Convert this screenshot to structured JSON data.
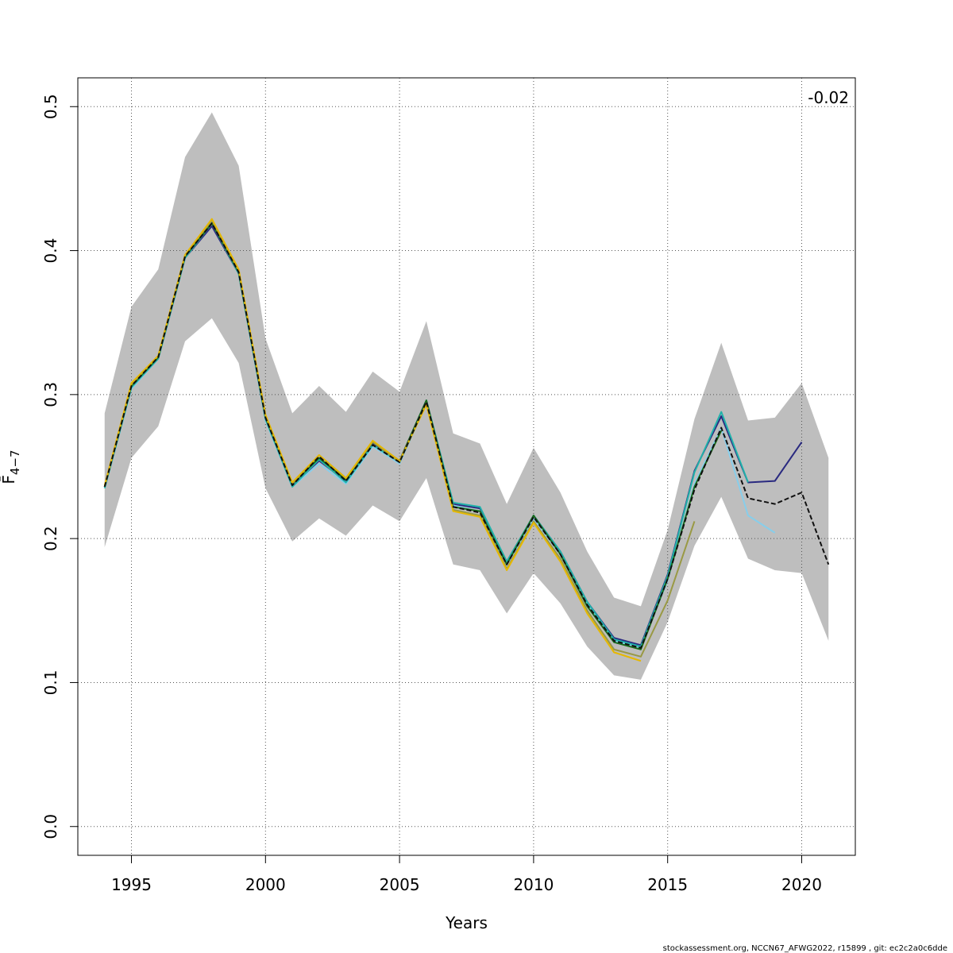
{
  "chart_data": {
    "type": "line",
    "title": "",
    "xlabel": "Years",
    "ylabel": "F̄",
    "ylabel_subscript": "4−7",
    "xlim": [
      1993,
      2022
    ],
    "ylim": [
      -0.02,
      0.52
    ],
    "x_ticks": [
      1995,
      2000,
      2005,
      2010,
      2015,
      2020
    ],
    "y_ticks": [
      0.0,
      0.1,
      0.2,
      0.3,
      0.4,
      0.5
    ],
    "grid": true,
    "annotation": "-0.02",
    "footer": "stockassessment.org, NCCN67_AFWG2022, r15899 , git: ec2c2a0c6dde",
    "confidence_band": {
      "color": "#bebebe",
      "x": [
        1994,
        1995,
        1996,
        1997,
        1998,
        1999,
        2000,
        2001,
        2002,
        2003,
        2004,
        2005,
        2006,
        2007,
        2008,
        2009,
        2010,
        2011,
        2012,
        2013,
        2014,
        2015,
        2016,
        2017,
        2018,
        2019,
        2020,
        2021
      ],
      "upper": [
        0.287,
        0.361,
        0.387,
        0.465,
        0.496,
        0.459,
        0.339,
        0.287,
        0.306,
        0.288,
        0.316,
        0.302,
        0.351,
        0.273,
        0.266,
        0.224,
        0.263,
        0.232,
        0.191,
        0.159,
        0.153,
        0.206,
        0.283,
        0.336,
        0.282,
        0.284,
        0.308,
        0.256
      ],
      "lower": [
        0.194,
        0.256,
        0.278,
        0.337,
        0.353,
        0.322,
        0.235,
        0.198,
        0.214,
        0.202,
        0.223,
        0.212,
        0.242,
        0.182,
        0.178,
        0.148,
        0.176,
        0.155,
        0.125,
        0.105,
        0.102,
        0.142,
        0.195,
        0.229,
        0.186,
        0.178,
        0.176,
        0.129
      ]
    },
    "series": [
      {
        "color": "#2a2a80",
        "dashed": false,
        "x": [
          1994,
          1995,
          1996,
          1997,
          1998,
          1999,
          2000,
          2001,
          2002,
          2003,
          2004,
          2005,
          2006,
          2007,
          2008,
          2009,
          2010,
          2011,
          2012,
          2013,
          2014,
          2015,
          2016,
          2017,
          2018,
          2019,
          2020
        ],
        "values": [
          0.236,
          0.305,
          0.325,
          0.395,
          0.417,
          0.384,
          0.283,
          0.237,
          0.254,
          0.24,
          0.266,
          0.254,
          0.296,
          0.224,
          0.221,
          0.184,
          0.216,
          0.191,
          0.156,
          0.131,
          0.126,
          0.175,
          0.247,
          0.285,
          0.239,
          0.24,
          0.267
        ]
      },
      {
        "color": "#87ceeb",
        "dashed": false,
        "x": [
          1994,
          1995,
          1996,
          1997,
          1998,
          1999,
          2000,
          2001,
          2002,
          2003,
          2004,
          2005,
          2006,
          2007,
          2008,
          2009,
          2010,
          2011,
          2012,
          2013,
          2014,
          2015,
          2016,
          2017,
          2018,
          2019
        ],
        "values": [
          0.235,
          0.304,
          0.325,
          0.395,
          0.419,
          0.384,
          0.282,
          0.236,
          0.252,
          0.238,
          0.264,
          0.252,
          0.294,
          0.223,
          0.219,
          0.182,
          0.214,
          0.189,
          0.155,
          0.129,
          0.124,
          0.171,
          0.238,
          0.277,
          0.216,
          0.204
        ]
      },
      {
        "color": "#20b2aa",
        "dashed": false,
        "x": [
          1994,
          1995,
          1996,
          1997,
          1998,
          1999,
          2000,
          2001,
          2002,
          2003,
          2004,
          2005,
          2006,
          2007,
          2008,
          2009,
          2010,
          2011,
          2012,
          2013,
          2014,
          2015,
          2016,
          2017,
          2018
        ],
        "values": [
          0.235,
          0.305,
          0.325,
          0.395,
          0.419,
          0.384,
          0.283,
          0.236,
          0.255,
          0.239,
          0.265,
          0.253,
          0.296,
          0.225,
          0.222,
          0.184,
          0.216,
          0.191,
          0.156,
          0.13,
          0.125,
          0.174,
          0.246,
          0.288,
          0.239
        ]
      },
      {
        "color": "#1a6b1a",
        "dashed": false,
        "x": [
          1994,
          1995,
          1996,
          1997,
          1998,
          1999,
          2000,
          2001,
          2002,
          2003,
          2004,
          2005,
          2006,
          2007,
          2008,
          2009,
          2010,
          2011,
          2012,
          2013,
          2014,
          2015,
          2016,
          2017
        ],
        "values": [
          0.236,
          0.306,
          0.326,
          0.396,
          0.419,
          0.385,
          0.284,
          0.238,
          0.256,
          0.241,
          0.267,
          0.254,
          0.296,
          0.222,
          0.219,
          0.182,
          0.216,
          0.189,
          0.153,
          0.128,
          0.123,
          0.172,
          0.236,
          0.275
        ]
      },
      {
        "color": "#999944",
        "dashed": false,
        "x": [
          1994,
          1995,
          1996,
          1997,
          1998,
          1999,
          2000,
          2001,
          2002,
          2003,
          2004,
          2005,
          2006,
          2007,
          2008,
          2009,
          2010,
          2011,
          2012,
          2013,
          2014,
          2015,
          2016
        ],
        "values": [
          0.236,
          0.307,
          0.327,
          0.397,
          0.421,
          0.386,
          0.285,
          0.238,
          0.258,
          0.242,
          0.267,
          0.253,
          0.294,
          0.22,
          0.216,
          0.179,
          0.212,
          0.186,
          0.15,
          0.123,
          0.118,
          0.157,
          0.212
        ]
      },
      {
        "color": "#e6b800",
        "dashed": false,
        "x": [
          1994,
          1995,
          1996,
          1997,
          1998,
          1999,
          2000,
          2001,
          2002,
          2003,
          2004,
          2005,
          2006,
          2007,
          2008,
          2009,
          2010,
          2011,
          2012,
          2013,
          2014
        ],
        "values": [
          0.237,
          0.308,
          0.327,
          0.397,
          0.422,
          0.387,
          0.286,
          0.239,
          0.258,
          0.242,
          0.268,
          0.254,
          0.293,
          0.219,
          0.215,
          0.178,
          0.211,
          0.184,
          0.148,
          0.121,
          0.115
        ]
      },
      {
        "color": "#111111",
        "dashed": true,
        "x": [
          1994,
          1995,
          1996,
          1997,
          1998,
          1999,
          2000,
          2001,
          2002,
          2003,
          2004,
          2005,
          2006,
          2007,
          2008,
          2009,
          2010,
          2011,
          2012,
          2013,
          2014,
          2015,
          2016,
          2017,
          2018,
          2019,
          2020,
          2021
        ],
        "values": [
          0.236,
          0.306,
          0.326,
          0.396,
          0.419,
          0.385,
          0.284,
          0.237,
          0.257,
          0.24,
          0.265,
          0.253,
          0.295,
          0.222,
          0.218,
          0.182,
          0.215,
          0.189,
          0.154,
          0.129,
          0.124,
          0.172,
          0.234,
          0.277,
          0.228,
          0.224,
          0.232,
          0.182
        ]
      }
    ]
  }
}
